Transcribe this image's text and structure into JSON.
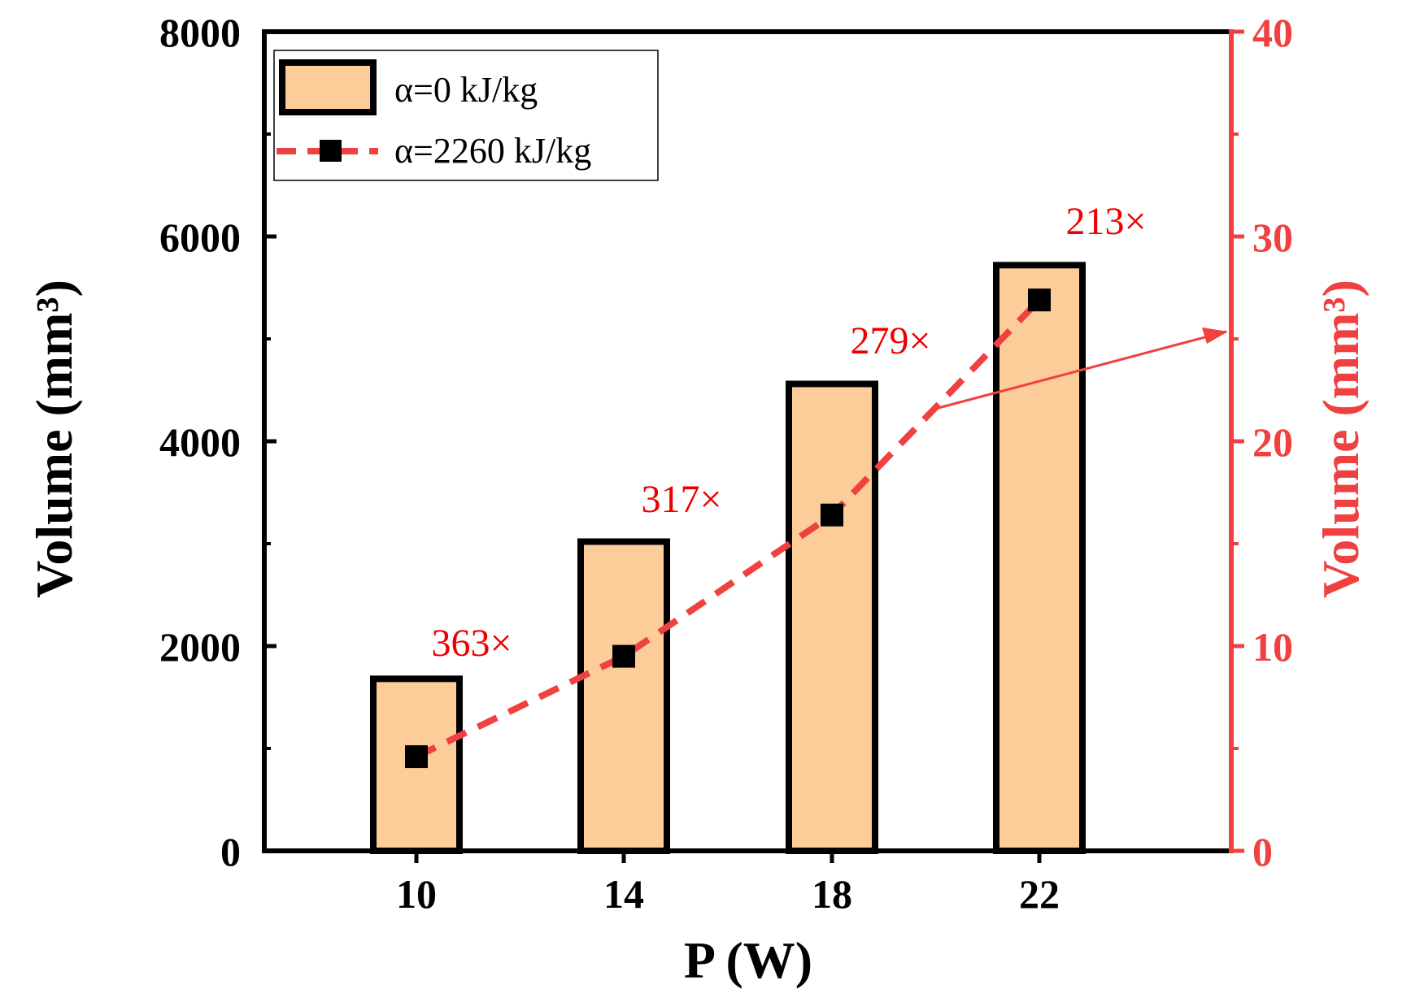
{
  "chart_data": {
    "type": "bar",
    "categories": [
      "10",
      "14",
      "18",
      "22"
    ],
    "xlabel": "P (W)",
    "ylabel_left": "Volume (mm³)",
    "ylabel_right": "Volume (mm³)",
    "ylim_left": [
      0,
      8000
    ],
    "ylim_right": [
      0,
      40
    ],
    "yticks_left": [
      "0",
      "2000",
      "4000",
      "6000",
      "8000"
    ],
    "yticks_right": [
      "0",
      "10",
      "20",
      "30",
      "40"
    ],
    "series": [
      {
        "name": "α=0 kJ/kg",
        "type": "bar",
        "axis": "left",
        "values": [
          1680,
          3020,
          4560,
          5720
        ],
        "color": "#FCCC99",
        "edge_color": "#000000"
      },
      {
        "name": "α=2260 kJ/kg",
        "type": "line",
        "axis": "right",
        "values": [
          4.6,
          9.5,
          16.4,
          26.9
        ],
        "line_color": "#F04040",
        "line_style": "dashed",
        "marker": "square",
        "marker_color": "#000000"
      }
    ],
    "annotations": [
      "363×",
      "317×",
      "279×",
      "213×"
    ],
    "annotation_color": "#EE0000",
    "right_axis_color": "#F04040",
    "legend_position": "top-left",
    "grid": false
  }
}
